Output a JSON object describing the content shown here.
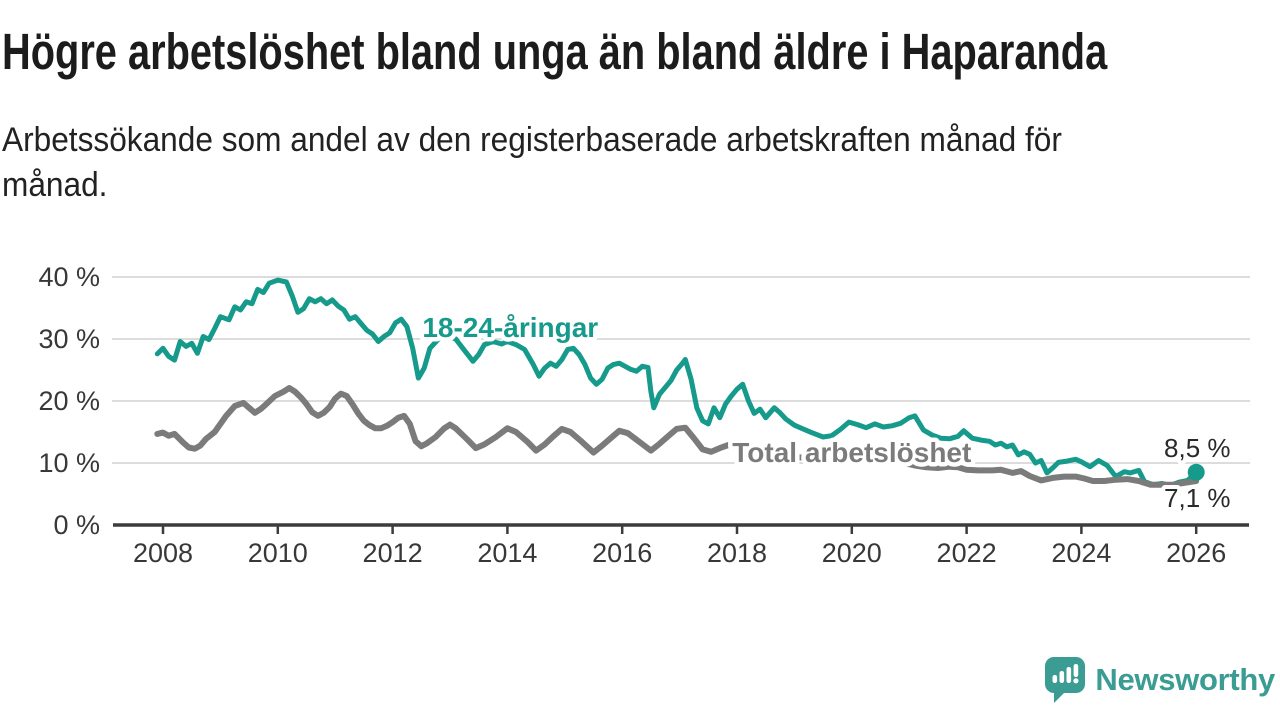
{
  "header": {
    "title": "Högre arbetslöshet bland unga än bland äldre i Haparanda",
    "subtitle_lines": [
      "Arbetssökande som andel av den registerbaserade arbetskraften månad för",
      "månad."
    ]
  },
  "chart_data": {
    "type": "line",
    "title": "Högre arbetslöshet bland unga än bland äldre i Haparanda",
    "xlabel": "",
    "ylabel": "",
    "unit": "%",
    "xlim": [
      2007.8,
      2026.95
    ],
    "ylim": [
      0,
      43
    ],
    "grid": "horizontal",
    "grid_color": "#dcdcdc",
    "axis_color": "#3c3c3c",
    "tick_text_color": "#383838",
    "x_ticks": [
      2008,
      2010,
      2012,
      2014,
      2016,
      2018,
      2020,
      2022,
      2024,
      2026
    ],
    "x_tick_labels": [
      "2008",
      "2010",
      "2012",
      "2014",
      "2016",
      "2018",
      "2020",
      "2022",
      "2024",
      "2026"
    ],
    "y_ticks": [
      0,
      10,
      20,
      30,
      40
    ],
    "y_tick_labels": [
      "0 %",
      "10 %",
      "20 %",
      "30 %",
      "40 %"
    ],
    "series": [
      {
        "name": "18-24-åringar",
        "color": "#159a8b",
        "stroke_width": 5,
        "label": {
          "text": "18-24-åringar",
          "x": 2014.05,
          "y": 30.3
        },
        "points": [
          [
            2007.9,
            27.6
          ],
          [
            2008.0,
            28.5
          ],
          [
            2008.1,
            27.2
          ],
          [
            2008.2,
            26.6
          ],
          [
            2008.3,
            29.6
          ],
          [
            2008.4,
            28.8
          ],
          [
            2008.5,
            29.3
          ],
          [
            2008.6,
            27.7
          ],
          [
            2008.7,
            30.4
          ],
          [
            2008.8,
            29.9
          ],
          [
            2008.9,
            31.7
          ],
          [
            2009.0,
            33.6
          ],
          [
            2009.15,
            33.1
          ],
          [
            2009.25,
            35.2
          ],
          [
            2009.35,
            34.7
          ],
          [
            2009.45,
            36.0
          ],
          [
            2009.55,
            35.7
          ],
          [
            2009.65,
            38.0
          ],
          [
            2009.75,
            37.5
          ],
          [
            2009.85,
            39.0
          ],
          [
            2010.0,
            39.5
          ],
          [
            2010.15,
            39.2
          ],
          [
            2010.25,
            37.0
          ],
          [
            2010.35,
            34.3
          ],
          [
            2010.45,
            34.9
          ],
          [
            2010.55,
            36.5
          ],
          [
            2010.65,
            36.0
          ],
          [
            2010.75,
            36.5
          ],
          [
            2010.85,
            35.7
          ],
          [
            2010.95,
            36.3
          ],
          [
            2011.05,
            35.3
          ],
          [
            2011.15,
            34.7
          ],
          [
            2011.25,
            33.2
          ],
          [
            2011.35,
            33.6
          ],
          [
            2011.45,
            32.5
          ],
          [
            2011.55,
            31.4
          ],
          [
            2011.65,
            30.8
          ],
          [
            2011.75,
            29.6
          ],
          [
            2011.85,
            30.4
          ],
          [
            2011.95,
            31.0
          ],
          [
            2012.05,
            32.6
          ],
          [
            2012.15,
            33.2
          ],
          [
            2012.25,
            32.0
          ],
          [
            2012.35,
            28.5
          ],
          [
            2012.45,
            23.7
          ],
          [
            2012.55,
            25.3
          ],
          [
            2012.65,
            28.5
          ],
          [
            2012.8,
            30.0
          ],
          [
            2012.95,
            30.5
          ],
          [
            2013.1,
            30.0
          ],
          [
            2013.25,
            28.2
          ],
          [
            2013.4,
            26.4
          ],
          [
            2013.5,
            27.5
          ],
          [
            2013.6,
            29.1
          ],
          [
            2013.75,
            29.6
          ],
          [
            2013.9,
            29.2
          ],
          [
            2014.0,
            29.6
          ],
          [
            2014.15,
            29.1
          ],
          [
            2014.3,
            28.3
          ],
          [
            2014.45,
            25.9
          ],
          [
            2014.55,
            24.0
          ],
          [
            2014.65,
            25.3
          ],
          [
            2014.75,
            26.1
          ],
          [
            2014.85,
            25.6
          ],
          [
            2014.95,
            26.7
          ],
          [
            2015.05,
            28.3
          ],
          [
            2015.15,
            28.5
          ],
          [
            2015.25,
            27.5
          ],
          [
            2015.35,
            25.9
          ],
          [
            2015.45,
            23.7
          ],
          [
            2015.55,
            22.7
          ],
          [
            2015.65,
            23.5
          ],
          [
            2015.75,
            25.3
          ],
          [
            2015.85,
            25.9
          ],
          [
            2015.95,
            26.1
          ],
          [
            2016.05,
            25.6
          ],
          [
            2016.15,
            25.1
          ],
          [
            2016.25,
            24.8
          ],
          [
            2016.35,
            25.6
          ],
          [
            2016.45,
            25.4
          ],
          [
            2016.5,
            21.5
          ],
          [
            2016.55,
            18.9
          ],
          [
            2016.65,
            21.1
          ],
          [
            2016.75,
            22.2
          ],
          [
            2016.85,
            23.3
          ],
          [
            2016.95,
            25.0
          ],
          [
            2017.05,
            26.1
          ],
          [
            2017.1,
            26.7
          ],
          [
            2017.2,
            23.5
          ],
          [
            2017.3,
            18.9
          ],
          [
            2017.4,
            16.8
          ],
          [
            2017.5,
            16.3
          ],
          [
            2017.6,
            18.9
          ],
          [
            2017.7,
            17.3
          ],
          [
            2017.8,
            19.5
          ],
          [
            2017.9,
            20.8
          ],
          [
            2018.0,
            21.9
          ],
          [
            2018.1,
            22.7
          ],
          [
            2018.2,
            20.0
          ],
          [
            2018.3,
            18.0
          ],
          [
            2018.4,
            18.7
          ],
          [
            2018.5,
            17.3
          ],
          [
            2018.65,
            18.9
          ],
          [
            2018.75,
            18.1
          ],
          [
            2018.85,
            17.1
          ],
          [
            2019.0,
            16.1
          ],
          [
            2019.15,
            15.5
          ],
          [
            2019.3,
            14.9
          ],
          [
            2019.5,
            14.2
          ],
          [
            2019.65,
            14.4
          ],
          [
            2019.8,
            15.4
          ],
          [
            2019.95,
            16.6
          ],
          [
            2020.1,
            16.2
          ],
          [
            2020.25,
            15.7
          ],
          [
            2020.4,
            16.3
          ],
          [
            2020.55,
            15.8
          ],
          [
            2020.7,
            16.0
          ],
          [
            2020.85,
            16.4
          ],
          [
            2021.0,
            17.3
          ],
          [
            2021.1,
            17.6
          ],
          [
            2021.25,
            15.3
          ],
          [
            2021.4,
            14.5
          ],
          [
            2021.55,
            14.0
          ],
          [
            2021.7,
            13.9
          ],
          [
            2021.85,
            14.3
          ],
          [
            2021.95,
            15.2
          ],
          [
            2022.1,
            14.0
          ],
          [
            2022.25,
            13.7
          ],
          [
            2022.4,
            13.5
          ],
          [
            2022.5,
            12.9
          ],
          [
            2022.6,
            13.2
          ],
          [
            2022.7,
            12.6
          ],
          [
            2022.8,
            12.9
          ],
          [
            2022.9,
            11.3
          ],
          [
            2023.0,
            11.8
          ],
          [
            2023.1,
            11.4
          ],
          [
            2023.2,
            10.0
          ],
          [
            2023.3,
            10.4
          ],
          [
            2023.4,
            8.4
          ],
          [
            2023.5,
            9.2
          ],
          [
            2023.6,
            10.1
          ],
          [
            2023.75,
            10.3
          ],
          [
            2023.9,
            10.6
          ],
          [
            2024.0,
            10.2
          ],
          [
            2024.15,
            9.4
          ],
          [
            2024.3,
            10.4
          ],
          [
            2024.45,
            9.6
          ],
          [
            2024.6,
            7.8
          ],
          [
            2024.75,
            8.6
          ],
          [
            2024.85,
            8.4
          ],
          [
            2025.0,
            8.8
          ],
          [
            2025.1,
            7.0
          ],
          [
            2025.25,
            6.5
          ],
          [
            2025.4,
            6.7
          ],
          [
            2025.55,
            6.4
          ],
          [
            2025.7,
            6.9
          ],
          [
            2025.85,
            7.2
          ],
          [
            2026.0,
            8.5
          ]
        ]
      },
      {
        "name": "Total arbetslöshet",
        "color": "#7b7b7b",
        "stroke_width": 6,
        "label": {
          "text": "Total arbetslöshet",
          "x": 2020.0,
          "y": 10.2
        },
        "points": [
          [
            2007.9,
            14.7
          ],
          [
            2008.0,
            14.9
          ],
          [
            2008.1,
            14.4
          ],
          [
            2008.2,
            14.7
          ],
          [
            2008.35,
            13.3
          ],
          [
            2008.45,
            12.5
          ],
          [
            2008.55,
            12.3
          ],
          [
            2008.65,
            12.8
          ],
          [
            2008.75,
            13.9
          ],
          [
            2008.9,
            15.0
          ],
          [
            2009.1,
            17.6
          ],
          [
            2009.25,
            19.2
          ],
          [
            2009.4,
            19.7
          ],
          [
            2009.5,
            18.9
          ],
          [
            2009.6,
            18.1
          ],
          [
            2009.7,
            18.7
          ],
          [
            2009.8,
            19.5
          ],
          [
            2009.95,
            20.8
          ],
          [
            2010.1,
            21.5
          ],
          [
            2010.2,
            22.1
          ],
          [
            2010.3,
            21.5
          ],
          [
            2010.4,
            20.6
          ],
          [
            2010.5,
            19.5
          ],
          [
            2010.6,
            18.2
          ],
          [
            2010.7,
            17.6
          ],
          [
            2010.8,
            18.1
          ],
          [
            2010.9,
            19.0
          ],
          [
            2011.0,
            20.4
          ],
          [
            2011.1,
            21.2
          ],
          [
            2011.2,
            20.8
          ],
          [
            2011.3,
            19.5
          ],
          [
            2011.4,
            18.0
          ],
          [
            2011.5,
            16.8
          ],
          [
            2011.6,
            16.1
          ],
          [
            2011.7,
            15.6
          ],
          [
            2011.8,
            15.6
          ],
          [
            2011.9,
            16.0
          ],
          [
            2012.0,
            16.6
          ],
          [
            2012.1,
            17.3
          ],
          [
            2012.2,
            17.6
          ],
          [
            2012.3,
            16.3
          ],
          [
            2012.4,
            13.5
          ],
          [
            2012.5,
            12.7
          ],
          [
            2012.6,
            13.2
          ],
          [
            2012.75,
            14.2
          ],
          [
            2012.9,
            15.6
          ],
          [
            2013.0,
            16.2
          ],
          [
            2013.1,
            15.6
          ],
          [
            2013.3,
            13.8
          ],
          [
            2013.45,
            12.4
          ],
          [
            2013.6,
            13.0
          ],
          [
            2013.8,
            14.2
          ],
          [
            2014.0,
            15.6
          ],
          [
            2014.15,
            15.0
          ],
          [
            2014.35,
            13.4
          ],
          [
            2014.5,
            12.0
          ],
          [
            2014.65,
            13.0
          ],
          [
            2014.8,
            14.3
          ],
          [
            2014.95,
            15.5
          ],
          [
            2015.1,
            15.0
          ],
          [
            2015.3,
            13.4
          ],
          [
            2015.5,
            11.7
          ],
          [
            2015.65,
            12.8
          ],
          [
            2015.8,
            14.0
          ],
          [
            2015.95,
            15.2
          ],
          [
            2016.1,
            14.8
          ],
          [
            2016.3,
            13.4
          ],
          [
            2016.5,
            12.0
          ],
          [
            2016.65,
            13.1
          ],
          [
            2016.8,
            14.3
          ],
          [
            2016.95,
            15.5
          ],
          [
            2017.1,
            15.7
          ],
          [
            2017.25,
            14.0
          ],
          [
            2017.4,
            12.2
          ],
          [
            2017.55,
            11.8
          ],
          [
            2017.7,
            12.4
          ],
          [
            2017.85,
            12.9
          ],
          [
            2018.0,
            12.5
          ],
          [
            2018.2,
            11.8
          ],
          [
            2018.4,
            11.4
          ],
          [
            2018.6,
            11.7
          ],
          [
            2018.8,
            11.3
          ],
          [
            2019.0,
            11.0
          ],
          [
            2019.2,
            10.8
          ],
          [
            2019.4,
            10.5
          ],
          [
            2019.6,
            10.6
          ],
          [
            2019.9,
            10.9
          ],
          [
            2020.1,
            11.1
          ],
          [
            2020.3,
            11.2
          ],
          [
            2020.5,
            10.9
          ],
          [
            2020.7,
            10.5
          ],
          [
            2020.9,
            10.0
          ],
          [
            2021.1,
            9.6
          ],
          [
            2021.3,
            9.3
          ],
          [
            2021.5,
            9.2
          ],
          [
            2021.7,
            9.4
          ],
          [
            2021.85,
            9.3
          ],
          [
            2022.0,
            8.9
          ],
          [
            2022.2,
            8.8
          ],
          [
            2022.45,
            8.8
          ],
          [
            2022.6,
            8.9
          ],
          [
            2022.8,
            8.4
          ],
          [
            2022.95,
            8.7
          ],
          [
            2023.1,
            7.9
          ],
          [
            2023.3,
            7.2
          ],
          [
            2023.5,
            7.6
          ],
          [
            2023.7,
            7.8
          ],
          [
            2023.9,
            7.8
          ],
          [
            2024.05,
            7.5
          ],
          [
            2024.2,
            7.1
          ],
          [
            2024.4,
            7.1
          ],
          [
            2024.6,
            7.3
          ],
          [
            2024.8,
            7.4
          ],
          [
            2025.0,
            7.1
          ],
          [
            2025.2,
            6.5
          ],
          [
            2025.4,
            6.5
          ],
          [
            2025.6,
            6.5
          ],
          [
            2025.8,
            6.8
          ],
          [
            2026.0,
            7.1
          ]
        ]
      }
    ],
    "end_annotations": [
      {
        "text": "8,5 %",
        "series": "18-24-åringar",
        "value": 8.5,
        "x": 2025.44,
        "y": 11.0
      },
      {
        "text": "7,1 %",
        "series": "Total arbetslöshet",
        "value": 7.1,
        "x": 2025.44,
        "y": 2.9
      }
    ],
    "end_dot": {
      "series": "18-24-åringar",
      "x": 2026.0,
      "y": 8.5,
      "radius": 8.5
    },
    "legend_position": "inline-labels"
  },
  "footer": {
    "brand": "Newsworthy",
    "brand_color": "#3a9c92"
  }
}
